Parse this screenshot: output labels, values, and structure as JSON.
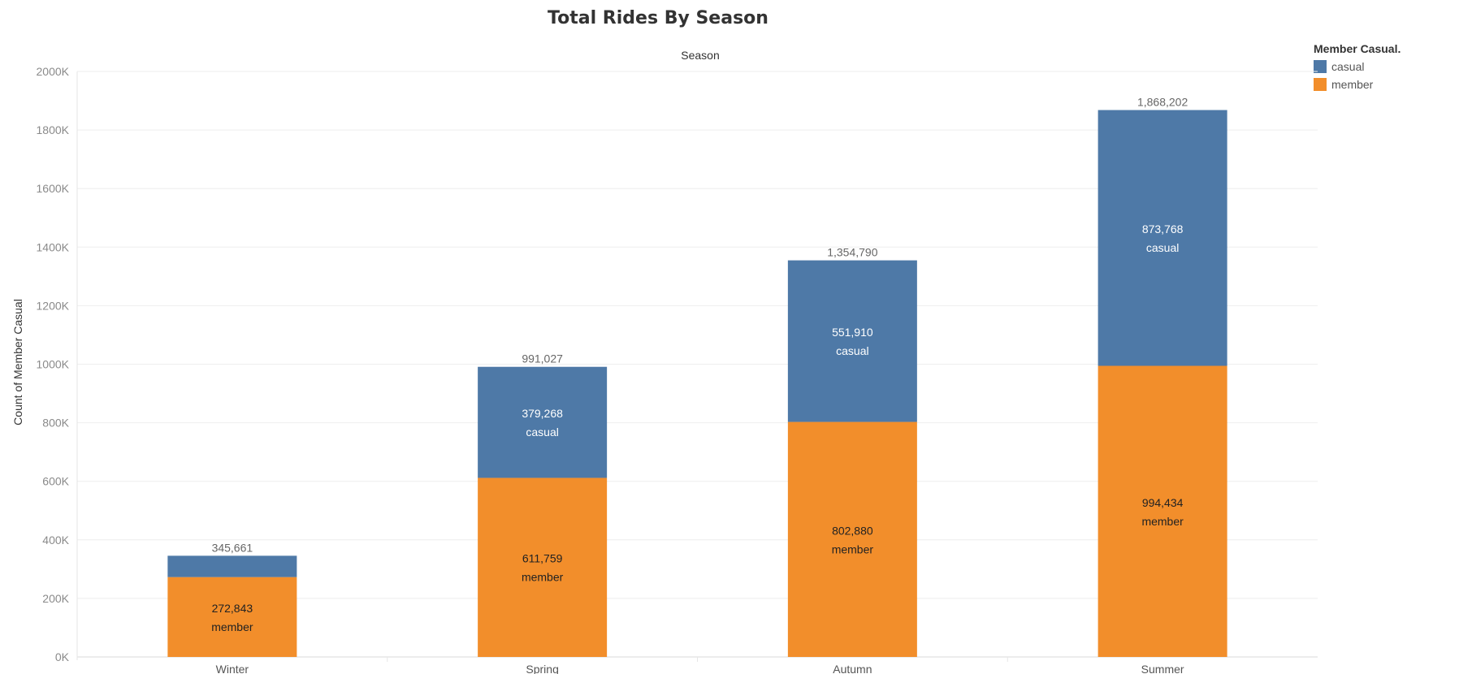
{
  "chart_data": {
    "type": "bar",
    "stacked": true,
    "title": "Total Rides By Season",
    "column_header": "Season",
    "ylabel": "Count of Member Casual",
    "ylim": [
      0,
      2000000
    ],
    "yticks": [
      "0K",
      "200K",
      "400K",
      "600K",
      "800K",
      "1000K",
      "1200K",
      "1400K",
      "1600K",
      "1800K",
      "2000K"
    ],
    "categories": [
      "Winter",
      "Spring",
      "Autumn",
      "Summer"
    ],
    "series": [
      {
        "name": "member",
        "values": [
          272843,
          611759,
          802880,
          994434
        ],
        "labels": [
          "272,843",
          "611,759",
          "802,880",
          "994,434"
        ],
        "color": "#f28e2b"
      },
      {
        "name": "casual",
        "values": [
          72818,
          379268,
          551910,
          873768
        ],
        "labels": [
          "",
          "379,268",
          "551,910",
          "873,768"
        ],
        "color": "#4e79a7"
      }
    ],
    "totals": [
      "345,661",
      "991,027",
      "1,354,790",
      "1,868,202"
    ],
    "legend": {
      "title": "Member Casual.",
      "placement": "top-right",
      "items": [
        "casual",
        "member"
      ]
    },
    "grid": true
  }
}
